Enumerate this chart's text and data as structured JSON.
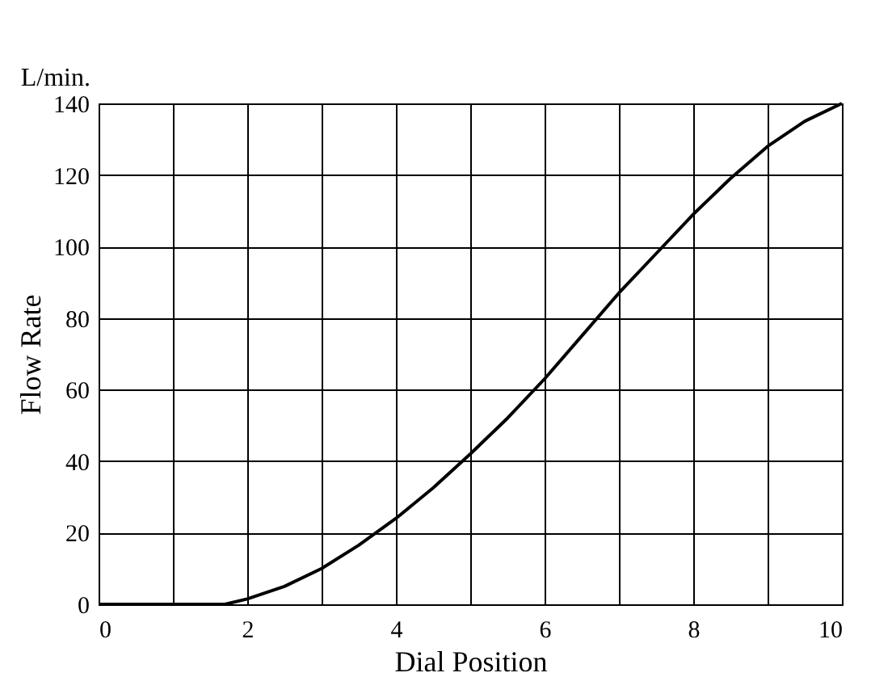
{
  "chart_data": {
    "type": "line",
    "xlabel": "Dial Position",
    "ylabel": "Flow Rate",
    "annotations": [
      "L/min."
    ],
    "x": [
      0,
      1,
      1.7,
      2,
      2.5,
      3,
      3.5,
      4,
      4.5,
      5,
      5.5,
      6,
      6.5,
      7,
      7.5,
      8,
      8.5,
      9,
      9.5,
      10
    ],
    "series": [
      {
        "color": "#000000",
        "values": [
          0,
          0,
          0,
          1.5,
          5,
          10,
          16.5,
          24,
          32.5,
          42,
          52,
          63,
          75,
          87,
          98,
          109,
          119,
          128,
          135,
          140
        ]
      }
    ],
    "xlim": [
      0,
      10
    ],
    "xticks": [
      0,
      {
        "value": 1,
        "label": null
      },
      2,
      {
        "value": 3,
        "label": null
      },
      4,
      {
        "value": 5,
        "label": null
      },
      6,
      {
        "value": 7,
        "label": null
      },
      8,
      {
        "value": 9,
        "label": null
      },
      10
    ],
    "ylim": [
      0,
      140
    ],
    "yticks": [
      0,
      20,
      40,
      60,
      80,
      100,
      120,
      140
    ],
    "grid": true,
    "marker": "none",
    "line_style": "solid"
  }
}
